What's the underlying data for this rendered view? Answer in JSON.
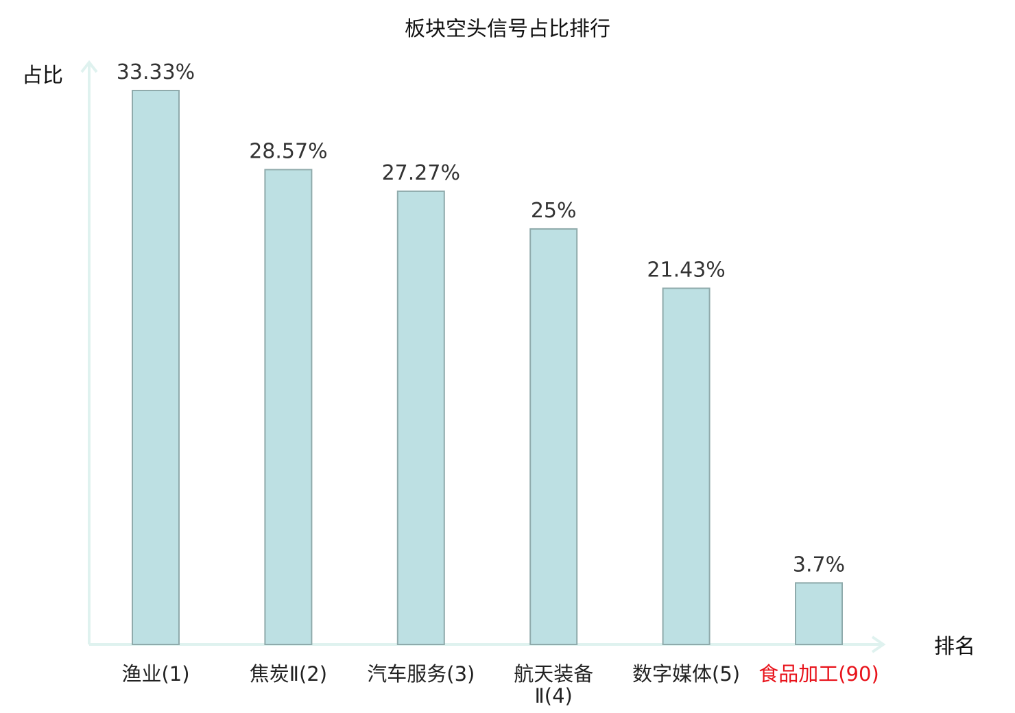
{
  "chart_data": {
    "type": "bar",
    "title": "板块空头信号占比排行",
    "xlabel": "排名",
    "ylabel": "占比",
    "ylim": [
      0,
      36
    ],
    "grid": false,
    "categories": [
      {
        "lines": [
          "渔业(1)"
        ],
        "highlight": false
      },
      {
        "lines": [
          "焦炭Ⅱ(2)"
        ],
        "highlight": false
      },
      {
        "lines": [
          "汽车服务(3)"
        ],
        "highlight": false
      },
      {
        "lines": [
          "航天装备",
          "Ⅱ(4)"
        ],
        "highlight": false
      },
      {
        "lines": [
          "数字媒体(5)"
        ],
        "highlight": false
      },
      {
        "lines": [
          "食品加工(90)"
        ],
        "highlight": true
      }
    ],
    "values": [
      33.33,
      28.57,
      27.27,
      25,
      21.43,
      3.7
    ],
    "value_labels": [
      "33.33%",
      "28.57%",
      "27.27%",
      "25%",
      "21.43%",
      "3.7%"
    ]
  },
  "colors": {
    "bar_fill": "#bde0e3",
    "bar_stroke": "#8faaab",
    "axis": "#dff2ef",
    "highlight": "#e8131b",
    "text": "#222222"
  }
}
